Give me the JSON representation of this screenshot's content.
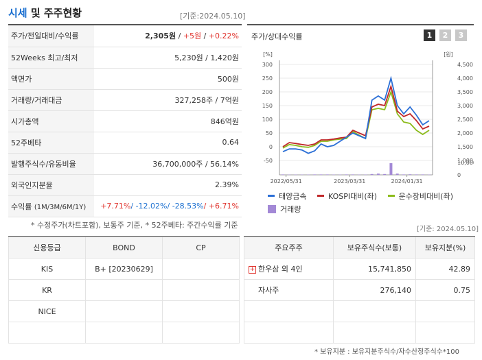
{
  "header": {
    "title_highlight": "시세",
    "title_rest": " 및 주주현황",
    "as_of": "[기준:2024.05.10]"
  },
  "quote_table": {
    "price_label": "주가/전일대비/수익률",
    "price": "2,305원",
    "change": "+5원",
    "change_pct": "+0.22%",
    "week52_label": "52Weeks 최고/최저",
    "week52_value": "5,230원 / 1,420원",
    "par_label": "액면가",
    "par_value": "500원",
    "volume_label": "거래량/거래대금",
    "volume_value": "327,258주 / 7억원",
    "mcap_label": "시가총액",
    "mcap_value": "846억원",
    "beta_label": "52주베타",
    "beta_value": "0.64",
    "shares_label": "발행주식수/유동비율",
    "shares_value": "36,700,000주 / 56.14%",
    "foreign_label": "외국인지분율",
    "foreign_value": "2.39%",
    "return_label": "수익률",
    "return_periods": "(1M/3M/6M/1Y)",
    "return_1m": "+7.71%",
    "return_3m": "-12.02%",
    "return_6m": "-28.53%",
    "return_1y": "+6.71%",
    "sep": "/ "
  },
  "footnote1": "* 수정주가(차트포함), 보통주 기준, * 52주베타: 주간수익률 기준",
  "as_of2": "[기준: 2024.05.10]",
  "chart": {
    "title": "주가/상대수익률",
    "tabs": [
      "1",
      "2",
      "3"
    ],
    "active_tab": "1",
    "left_unit": "[%]",
    "right_unit": "[원]",
    "left_ticks": [
      "300",
      "250",
      "200",
      "150",
      "100",
      "50",
      "0",
      "-50"
    ],
    "right_ticks": [
      "4,500",
      "4,000",
      "3,500",
      "3,000",
      "2,500",
      "2,000",
      "1,500",
      "1,000"
    ],
    "volume_tick_top": "10,000,000",
    "volume_tick_zero": "0",
    "x_ticks": [
      "2022/05/31",
      "2023/03/31",
      "2024/01/31"
    ],
    "legend": {
      "s1": "태양금속",
      "s2": "KOSPI대비(좌)",
      "s3": "운수장비대비(좌)",
      "vol": "거래량"
    },
    "colors": {
      "s1": "#2b6fd6",
      "s2": "#c0282a",
      "s3": "#8cbb1c",
      "vol": "#a389d6"
    }
  },
  "chart_data": {
    "type": "line",
    "x_ticks": [
      "2022/05/31",
      "2023/03/31",
      "2024/01/31"
    ],
    "ylim_left": [
      -50,
      300
    ],
    "ylim_right": [
      1000,
      4500
    ],
    "series": [
      {
        "name": "태양금속",
        "axis": "right",
        "values": [
          1320,
          1420,
          1420,
          1380,
          1260,
          1350,
          1600,
          1500,
          1550,
          1700,
          1850,
          2000,
          1900,
          1800,
          3200,
          3350,
          3200,
          4000,
          3000,
          2700,
          2950,
          2650,
          2300,
          2450
        ]
      },
      {
        "name": "KOSPI대비(좌)",
        "axis": "left",
        "values": [
          0,
          15,
          12,
          8,
          5,
          10,
          25,
          25,
          28,
          32,
          35,
          60,
          50,
          40,
          145,
          155,
          150,
          220,
          130,
          110,
          120,
          95,
          65,
          75
        ]
      },
      {
        "name": "운수장비대비(좌)",
        "axis": "left",
        "values": [
          -5,
          8,
          5,
          0,
          -2,
          5,
          20,
          20,
          25,
          28,
          30,
          55,
          42,
          30,
          135,
          140,
          135,
          200,
          120,
          90,
          85,
          60,
          45,
          60
        ]
      }
    ],
    "volume": {
      "name": "거래량",
      "values": [
        0.3,
        0.2,
        0.2,
        0.2,
        0.2,
        0.3,
        0.3,
        0.3,
        0.2,
        0.2,
        0.3,
        0.3,
        0.2,
        0.2,
        0.6,
        0.9,
        0.6,
        8.5,
        0.9,
        0.3,
        0.4,
        0.3,
        0.3,
        0.2
      ]
    }
  },
  "credit_table": {
    "headers": [
      "신용등급",
      "BOND",
      "CP"
    ],
    "rows": [
      {
        "agency": "KIS",
        "bond": "B+   [20230629]",
        "cp": ""
      },
      {
        "agency": "KR",
        "bond": "",
        "cp": ""
      },
      {
        "agency": "NICE",
        "bond": "",
        "cp": ""
      },
      {
        "agency": "",
        "bond": "",
        "cp": ""
      }
    ]
  },
  "holder_table": {
    "headers": [
      "주요주주",
      "보유주식수(보통)",
      "보유지분(%)"
    ],
    "rows": [
      {
        "name": "한우삼 외 4인",
        "shares": "15,741,850",
        "pct": "42.89"
      },
      {
        "name": "자사주",
        "shares": "276,140",
        "pct": "0.75"
      },
      {
        "name": "",
        "shares": "",
        "pct": ""
      },
      {
        "name": "",
        "shares": "",
        "pct": ""
      }
    ]
  },
  "footnote2": "* 보유지분 : 보유지분주식수/자수산정주식수*100"
}
